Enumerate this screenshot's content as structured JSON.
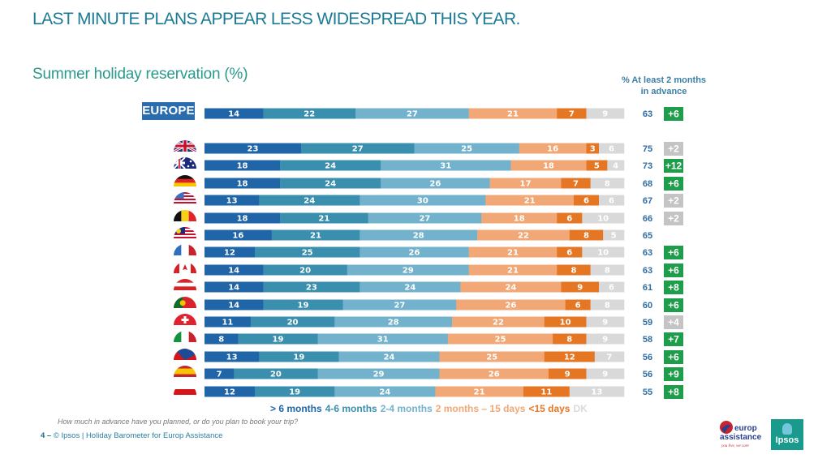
{
  "header": {
    "title": "LAST MINUTE PLANS APPEAR LESS WIDESPREAD THIS YEAR.",
    "subtitle": "Summer holiday  reservation  (%)",
    "column_header_line1": "% At least 2 months",
    "column_header_line2": "in advance"
  },
  "colors": {
    "gt6m": "#1f65a8",
    "m4_6": "#3a8fae",
    "m2_4": "#73b2cd",
    "m2_d15": "#f1a876",
    "lt15d": "#e57624",
    "dk": "#d9d9d9",
    "change_positive": "#1e9e4a",
    "change_neutral": "#c4c4c4"
  },
  "chart_data": {
    "type": "bar",
    "orientation": "horizontal-stacked",
    "title": "Summer holiday reservation (%)",
    "xlabel": "",
    "ylabel": "",
    "legend_position": "bottom",
    "series_names": [
      ">6 months",
      "4-6 months",
      "2-4 months",
      "2 months – 15 days",
      "<15 days",
      "DK"
    ],
    "categories": [
      "EUROPE",
      "United Kingdom",
      "Australia",
      "Germany",
      "USA",
      "Belgium",
      "Malaysia",
      "France",
      "Canada",
      "Austria",
      "Portugal",
      "Switzerland",
      "Italy",
      "Czech Republic",
      "Spain",
      "Poland"
    ],
    "rows": [
      {
        "country": "EUROPE",
        "flag": "europe-badge",
        "values": [
          14,
          22,
          27,
          21,
          7,
          9
        ],
        "at_least_2m": 63,
        "change": "+6",
        "change_type": "positive"
      },
      {
        "country": "United Kingdom",
        "flag": "uk-flag-icon",
        "values": [
          23,
          27,
          25,
          16,
          3,
          6
        ],
        "at_least_2m": 75,
        "change": "+2",
        "change_type": "neutral"
      },
      {
        "country": "Australia",
        "flag": "australia-flag-icon",
        "values": [
          18,
          24,
          31,
          18,
          5,
          4
        ],
        "at_least_2m": 73,
        "change": "+12",
        "change_type": "positive"
      },
      {
        "country": "Germany",
        "flag": "germany-flag-icon",
        "values": [
          18,
          24,
          26,
          17,
          7,
          8
        ],
        "at_least_2m": 68,
        "change": "+6",
        "change_type": "positive"
      },
      {
        "country": "USA",
        "flag": "usa-flag-icon",
        "values": [
          13,
          24,
          30,
          21,
          6,
          6
        ],
        "at_least_2m": 67,
        "change": "+2",
        "change_type": "neutral"
      },
      {
        "country": "Belgium",
        "flag": "belgium-flag-icon",
        "values": [
          18,
          21,
          27,
          18,
          6,
          10
        ],
        "at_least_2m": 66,
        "change": "+2",
        "change_type": "neutral"
      },
      {
        "country": "Malaysia",
        "flag": "malaysia-flag-icon",
        "values": [
          16,
          21,
          28,
          22,
          8,
          5
        ],
        "at_least_2m": 65,
        "change": "",
        "change_type": "none"
      },
      {
        "country": "France",
        "flag": "france-flag-icon",
        "values": [
          12,
          25,
          26,
          21,
          6,
          10
        ],
        "at_least_2m": 63,
        "change": "+6",
        "change_type": "positive"
      },
      {
        "country": "Canada",
        "flag": "canada-flag-icon",
        "values": [
          14,
          20,
          29,
          21,
          8,
          8
        ],
        "at_least_2m": 63,
        "change": "+6",
        "change_type": "positive"
      },
      {
        "country": "Austria",
        "flag": "austria-flag-icon",
        "values": [
          14,
          23,
          24,
          24,
          9,
          6
        ],
        "at_least_2m": 61,
        "change": "+8",
        "change_type": "positive"
      },
      {
        "country": "Portugal",
        "flag": "portugal-flag-icon",
        "values": [
          14,
          19,
          27,
          26,
          6,
          8
        ],
        "at_least_2m": 60,
        "change": "+6",
        "change_type": "positive"
      },
      {
        "country": "Switzerland",
        "flag": "switzerland-flag-icon",
        "values": [
          11,
          20,
          28,
          22,
          10,
          9
        ],
        "at_least_2m": 59,
        "change": "+4",
        "change_type": "neutral"
      },
      {
        "country": "Italy",
        "flag": "italy-flag-icon",
        "values": [
          8,
          19,
          31,
          25,
          8,
          9
        ],
        "at_least_2m": 58,
        "change": "+7",
        "change_type": "positive"
      },
      {
        "country": "Czech Republic",
        "flag": "czech-flag-icon",
        "values": [
          13,
          19,
          24,
          25,
          12,
          7
        ],
        "at_least_2m": 56,
        "change": "+6",
        "change_type": "positive"
      },
      {
        "country": "Spain",
        "flag": "spain-flag-icon",
        "values": [
          7,
          20,
          29,
          26,
          9,
          9
        ],
        "at_least_2m": 56,
        "change": "+9",
        "change_type": "positive"
      },
      {
        "country": "Poland",
        "flag": "poland-flag-icon",
        "values": [
          12,
          19,
          24,
          21,
          11,
          13
        ],
        "at_least_2m": 55,
        "change": "+8",
        "change_type": "positive"
      }
    ]
  },
  "europe_label": "EUROPE",
  "legend": {
    "items": [
      {
        "label": "> 6 months",
        "color": "#1f65a8"
      },
      {
        "label": "4-6 months",
        "color": "#3a8fae"
      },
      {
        "label": "2-4 months",
        "color": "#73b2cd"
      },
      {
        "label": "2 months – 15 days",
        "color": "#f1a876"
      },
      {
        "label": "<15 days",
        "color": "#e57624"
      },
      {
        "label": "DK",
        "color": "#d9d9d9"
      }
    ]
  },
  "question": "How much in advance have you planned, or do you plan to book your trip?",
  "footer": {
    "page_number": "4 –",
    "text": "© Ipsos | Holiday Barometer for Europ Assistance"
  },
  "logos": {
    "europ_assistance_line1": "europ",
    "europ_assistance_line2": "assistance",
    "europ_assistance_tagline": "you live, we care",
    "ipsos": "Ipsos"
  }
}
